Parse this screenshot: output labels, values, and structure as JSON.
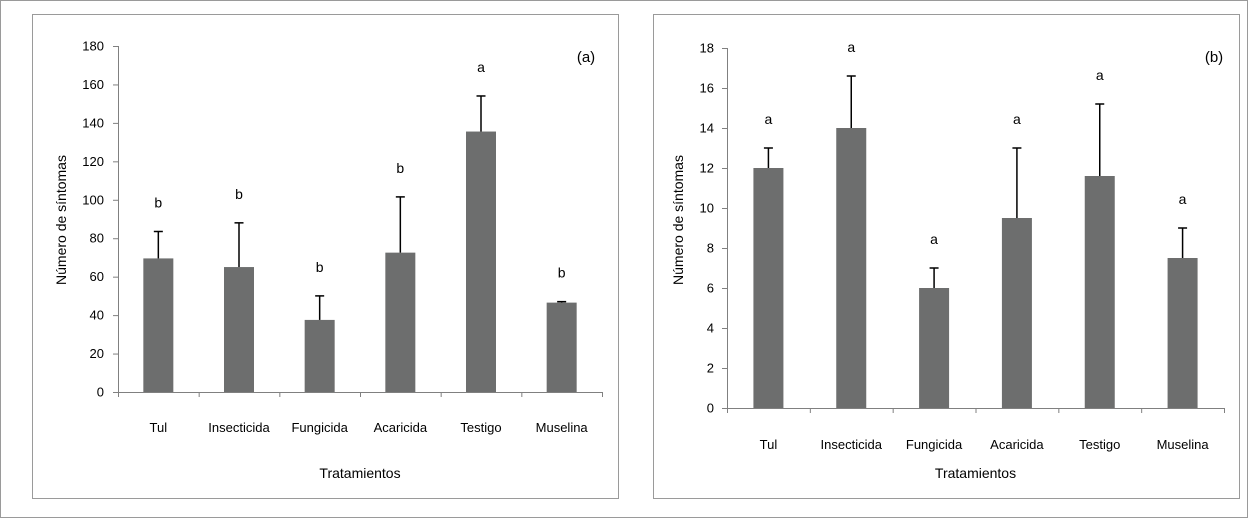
{
  "colors": {
    "bar": "#6d6e6e",
    "axis": "#808080",
    "frame": "#9a9a9a",
    "text": "#000000"
  },
  "chart_data": [
    {
      "type": "bar",
      "panel_label": "(a)",
      "categories": [
        "Tul",
        "Insecticida",
        "Fungicida",
        "Acaricida",
        "Testigo",
        "Muselina"
      ],
      "values": [
        69.5,
        65,
        37.5,
        72.5,
        135.5,
        46.5
      ],
      "errors": [
        14,
        23,
        12.5,
        29,
        18.5,
        0.5
      ],
      "letters": [
        "b",
        "b",
        "b",
        "b",
        "a",
        "b"
      ],
      "xlabel": "Tratamientos",
      "ylabel": "Número de síntomas",
      "ylim": [
        0,
        180
      ],
      "yticks": [
        0,
        20,
        40,
        60,
        80,
        100,
        120,
        140,
        160,
        180
      ],
      "grid": false,
      "legend": "none"
    },
    {
      "type": "bar",
      "panel_label": "(b)",
      "categories": [
        "Tul",
        "Insecticida",
        "Fungicida",
        "Acaricida",
        "Testigo",
        "Muselina"
      ],
      "values": [
        12,
        14,
        6,
        9.5,
        11.6,
        7.5
      ],
      "errors": [
        1,
        2.6,
        1,
        3.5,
        3.6,
        1.5
      ],
      "letters": [
        "a",
        "a",
        "a",
        "a",
        "a",
        "a"
      ],
      "xlabel": "Tratamientos",
      "ylabel": "Número de síntomas",
      "ylim": [
        0,
        18
      ],
      "yticks": [
        0,
        2,
        4,
        6,
        8,
        10,
        12,
        14,
        16,
        18
      ],
      "grid": false,
      "legend": "none"
    }
  ]
}
